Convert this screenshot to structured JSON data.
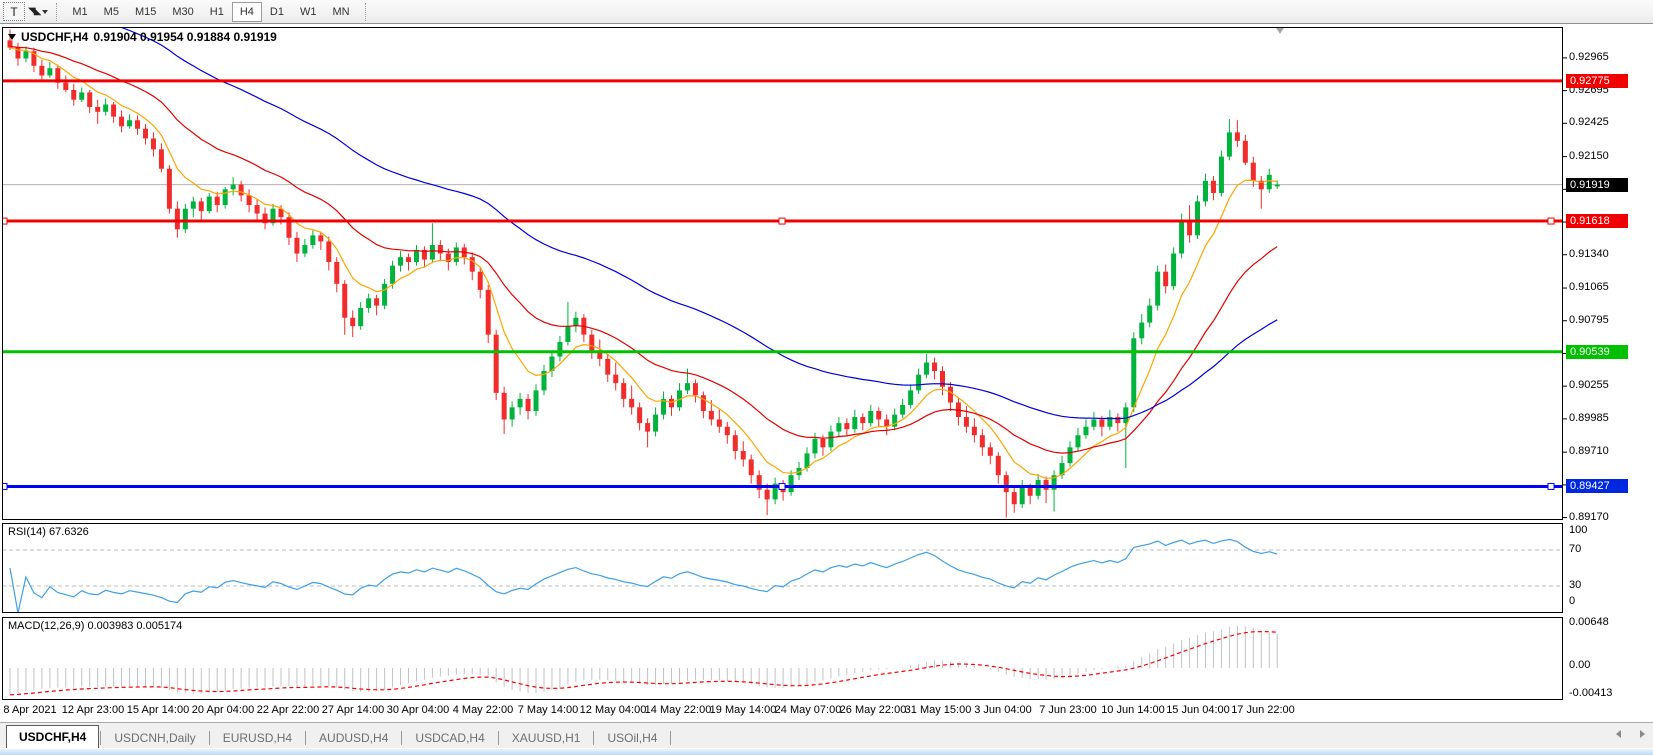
{
  "toolbar": {
    "text_tool_label": "T",
    "timeframes": [
      "M1",
      "M5",
      "M15",
      "M30",
      "H1",
      "H4",
      "D1",
      "W1",
      "MN"
    ],
    "active_timeframe": "H4"
  },
  "chart": {
    "symbol_label": "USDCHF,H4",
    "ohlc_label": "0.91904 0.91954 0.91884 0.91919"
  },
  "price_axis": {
    "ticks": [
      0.92965,
      0.92695,
      0.92425,
      0.9215,
      0.9188,
      0.9161,
      0.9134,
      0.91065,
      0.90795,
      0.90525,
      0.90255,
      0.89985,
      0.8971,
      0.8944,
      0.8917
    ],
    "badges": [
      {
        "label": "0.92775",
        "price": 0.92775,
        "bg": "#f00000"
      },
      {
        "label": "0.91919",
        "price": 0.91919,
        "bg": "#000000"
      },
      {
        "label": "0.91618",
        "price": 0.91618,
        "bg": "#f00000"
      },
      {
        "label": "0.90539",
        "price": 0.90539,
        "bg": "#00c000"
      },
      {
        "label": "0.89427",
        "price": 0.89427,
        "bg": "#0028e0"
      }
    ]
  },
  "rsi_panel": {
    "label": "RSI(14) 67.6326",
    "axis_labels": [
      "100",
      "70",
      "30",
      "0"
    ]
  },
  "macd_panel": {
    "label": "MACD(12,26,9) 0.003983 0.005174",
    "axis_labels": [
      "0.00648",
      "0.00",
      "-0.00413"
    ]
  },
  "time_axis": {
    "labels": [
      "8 Apr 2021",
      "12 Apr 23:00",
      "15 Apr 14:00",
      "20 Apr 04:00",
      "22 Apr 22:00",
      "27 Apr 14:00",
      "30 Apr 04:00",
      "4 May 22:00",
      "7 May 14:00",
      "12 May 04:00",
      "14 May 22:00",
      "19 May 14:00",
      "24 May 07:00",
      "26 May 22:00",
      "31 May 15:00",
      "3 Jun 04:00",
      "7 Jun 23:00",
      "10 Jun 14:00",
      "15 Jun 04:00",
      "17 Jun 22:00"
    ]
  },
  "tabs": {
    "items": [
      "USDCHF,H4",
      "USDCNH,Daily",
      "EURUSD,H4",
      "AUDUSD,H4",
      "USDCAD,H4",
      "XAUUSD,H1",
      "USOil,H4"
    ],
    "active": "USDCHF,H4"
  },
  "colors": {
    "bull": "#00b33c",
    "bear": "#f22b2b",
    "ma_fast": "#ffa500",
    "ma_mid": "#e60000",
    "ma_slow": "#0000e0",
    "rsi_line": "#3e9fe8",
    "macd_hist": "#c2c2c2",
    "macd_signal": "#ff0000",
    "current_price_line": "#b3b3b3",
    "hline_red": "#f00000",
    "hline_green": "#00c000",
    "hline_blue": "#0000ff"
  },
  "chart_data": {
    "type": "candlestick",
    "instrument": "USDCHF",
    "timeframe": "H4",
    "title": "USDCHF,H4",
    "last_ohlc": {
      "open": 0.91904,
      "high": 0.91954,
      "low": 0.91884,
      "close": 0.91919
    },
    "current_price": 0.91919,
    "ylim": [
      0.8915,
      0.9322
    ],
    "price_scale": 100000,
    "candles": [
      [
        93110,
        93200,
        93030,
        93050
      ],
      [
        93050,
        93090,
        92900,
        92960
      ],
      [
        92960,
        93060,
        92930,
        93020
      ],
      [
        93020,
        93050,
        92850,
        92900
      ],
      [
        92900,
        92950,
        92780,
        92820
      ],
      [
        92820,
        92930,
        92800,
        92880
      ],
      [
        92880,
        92910,
        92710,
        92760
      ],
      [
        92760,
        92820,
        92680,
        92700
      ],
      [
        92700,
        92750,
        92570,
        92620
      ],
      [
        92620,
        92720,
        92600,
        92680
      ],
      [
        92680,
        92700,
        92510,
        92560
      ],
      [
        92560,
        92620,
        92420,
        92520
      ],
      [
        92520,
        92630,
        92490,
        92580
      ],
      [
        92580,
        92600,
        92430,
        92480
      ],
      [
        92480,
        92530,
        92350,
        92400
      ],
      [
        92400,
        92500,
        92380,
        92450
      ],
      [
        92450,
        92490,
        92330,
        92380
      ],
      [
        92380,
        92420,
        92250,
        92300
      ],
      [
        92300,
        92350,
        92150,
        92210
      ],
      [
        92210,
        92260,
        92020,
        92050
      ],
      [
        92050,
        92080,
        91680,
        91720
      ],
      [
        91720,
        91780,
        91480,
        91550
      ],
      [
        91550,
        91760,
        91520,
        91720
      ],
      [
        91720,
        91820,
        91650,
        91780
      ],
      [
        91780,
        91810,
        91630,
        91700
      ],
      [
        91700,
        91850,
        91680,
        91820
      ],
      [
        91820,
        91860,
        91690,
        91750
      ],
      [
        91750,
        91900,
        91720,
        91880
      ],
      [
        91880,
        91980,
        91830,
        91920
      ],
      [
        91920,
        91950,
        91780,
        91830
      ],
      [
        91830,
        91880,
        91690,
        91750
      ],
      [
        91750,
        91800,
        91610,
        91680
      ],
      [
        91680,
        91730,
        91550,
        91600
      ],
      [
        91600,
        91760,
        91580,
        91720
      ],
      [
        91720,
        91750,
        91590,
        91650
      ],
      [
        91650,
        91690,
        91420,
        91480
      ],
      [
        91480,
        91530,
        91280,
        91350
      ],
      [
        91350,
        91470,
        91320,
        91420
      ],
      [
        91420,
        91540,
        91390,
        91500
      ],
      [
        91500,
        91530,
        91380,
        91450
      ],
      [
        91450,
        91490,
        91210,
        91280
      ],
      [
        91280,
        91320,
        91030,
        91100
      ],
      [
        91100,
        91130,
        90680,
        90820
      ],
      [
        90820,
        90880,
        90660,
        90750
      ],
      [
        90750,
        90950,
        90720,
        90900
      ],
      [
        90900,
        91020,
        90860,
        90980
      ],
      [
        90980,
        91010,
        90840,
        90920
      ],
      [
        90920,
        91140,
        90890,
        91100
      ],
      [
        91100,
        91290,
        91060,
        91250
      ],
      [
        91250,
        91370,
        91200,
        91320
      ],
      [
        91320,
        91350,
        91210,
        91280
      ],
      [
        91280,
        91420,
        91250,
        91380
      ],
      [
        91380,
        91410,
        91240,
        91300
      ],
      [
        91300,
        91600,
        91270,
        91420
      ],
      [
        91420,
        91460,
        91290,
        91350
      ],
      [
        91350,
        91390,
        91210,
        91280
      ],
      [
        91280,
        91440,
        91250,
        91400
      ],
      [
        91400,
        91430,
        91260,
        91320
      ],
      [
        91320,
        91360,
        91130,
        91200
      ],
      [
        91200,
        91240,
        90980,
        91050
      ],
      [
        91050,
        91090,
        90610,
        90680
      ],
      [
        90680,
        90720,
        90140,
        90200
      ],
      [
        90200,
        90250,
        89860,
        89980
      ],
      [
        89980,
        90130,
        89920,
        90080
      ],
      [
        90080,
        90200,
        90020,
        90150
      ],
      [
        90150,
        90190,
        89980,
        90050
      ],
      [
        90050,
        90270,
        90010,
        90220
      ],
      [
        90220,
        90430,
        90180,
        90380
      ],
      [
        90380,
        90550,
        90330,
        90500
      ],
      [
        90500,
        90670,
        90460,
        90620
      ],
      [
        90620,
        90950,
        90590,
        90750
      ],
      [
        90750,
        90870,
        90700,
        90820
      ],
      [
        90820,
        90850,
        90620,
        90680
      ],
      [
        90680,
        90720,
        90480,
        90550
      ],
      [
        90550,
        90640,
        90420,
        90480
      ],
      [
        90480,
        90520,
        90290,
        90350
      ],
      [
        90350,
        90450,
        90220,
        90280
      ],
      [
        90280,
        90320,
        90080,
        90150
      ],
      [
        90150,
        90260,
        90020,
        90080
      ],
      [
        90080,
        90120,
        89890,
        89950
      ],
      [
        89950,
        89990,
        89750,
        89880
      ],
      [
        89880,
        90080,
        89840,
        90020
      ],
      [
        90020,
        90210,
        89980,
        90150
      ],
      [
        90150,
        90180,
        90010,
        90080
      ],
      [
        90080,
        90280,
        90050,
        90220
      ],
      [
        90220,
        90400,
        90190,
        90280
      ],
      [
        90280,
        90310,
        90120,
        90180
      ],
      [
        90180,
        90210,
        89990,
        90050
      ],
      [
        90050,
        90140,
        89930,
        89980
      ],
      [
        89980,
        90060,
        89870,
        89920
      ],
      [
        89920,
        89960,
        89780,
        89850
      ],
      [
        89850,
        89890,
        89650,
        89720
      ],
      [
        89720,
        89800,
        89590,
        89650
      ],
      [
        89650,
        89690,
        89450,
        89520
      ],
      [
        89520,
        89560,
        89330,
        89400
      ],
      [
        89400,
        89450,
        89190,
        89320
      ],
      [
        89320,
        89500,
        89280,
        89450
      ],
      [
        89450,
        89480,
        89310,
        89380
      ],
      [
        89380,
        89560,
        89350,
        89520
      ],
      [
        89520,
        89630,
        89480,
        89580
      ],
      [
        89580,
        89750,
        89550,
        89700
      ],
      [
        89700,
        89870,
        89660,
        89820
      ],
      [
        89820,
        89850,
        89680,
        89750
      ],
      [
        89750,
        89930,
        89720,
        89880
      ],
      [
        89880,
        90000,
        89840,
        89950
      ],
      [
        89950,
        89990,
        89840,
        89900
      ],
      [
        89900,
        90060,
        89870,
        90000
      ],
      [
        90000,
        90030,
        89890,
        89950
      ],
      [
        89950,
        90100,
        89920,
        90050
      ],
      [
        90050,
        90080,
        89920,
        89980
      ],
      [
        89980,
        90020,
        89850,
        89920
      ],
      [
        89920,
        90070,
        89890,
        90020
      ],
      [
        90020,
        90150,
        89990,
        90100
      ],
      [
        90100,
        90270,
        90070,
        90220
      ],
      [
        90220,
        90400,
        90190,
        90350
      ],
      [
        90350,
        90520,
        90320,
        90450
      ],
      [
        90450,
        90490,
        90310,
        90380
      ],
      [
        90380,
        90420,
        90180,
        90250
      ],
      [
        90250,
        90290,
        90050,
        90120
      ],
      [
        90120,
        90160,
        89930,
        90000
      ],
      [
        90000,
        90090,
        89870,
        89920
      ],
      [
        89920,
        89990,
        89790,
        89850
      ],
      [
        89850,
        89900,
        89680,
        89750
      ],
      [
        89750,
        89790,
        89610,
        89680
      ],
      [
        89680,
        89710,
        89450,
        89520
      ],
      [
        89520,
        89550,
        89170,
        89380
      ],
      [
        89380,
        89420,
        89210,
        89280
      ],
      [
        89280,
        89480,
        89250,
        89420
      ],
      [
        89420,
        89450,
        89280,
        89350
      ],
      [
        89350,
        89530,
        89320,
        89480
      ],
      [
        89480,
        89510,
        89290,
        89400
      ],
      [
        89400,
        89560,
        89220,
        89520
      ],
      [
        89520,
        89680,
        89490,
        89620
      ],
      [
        89620,
        89800,
        89590,
        89750
      ],
      [
        89750,
        89910,
        89720,
        89850
      ],
      [
        89850,
        89980,
        89820,
        89920
      ],
      [
        89920,
        90040,
        89890,
        89980
      ],
      [
        89980,
        90010,
        89840,
        89920
      ],
      [
        89920,
        90060,
        89890,
        90000
      ],
      [
        90000,
        90030,
        89880,
        89950
      ],
      [
        89950,
        90120,
        89580,
        90080
      ],
      [
        90080,
        90700,
        90040,
        90650
      ],
      [
        90650,
        90850,
        90600,
        90780
      ],
      [
        90780,
        90980,
        90740,
        90920
      ],
      [
        90920,
        91250,
        90880,
        91200
      ],
      [
        91200,
        91260,
        91020,
        91080
      ],
      [
        91080,
        91400,
        91050,
        91350
      ],
      [
        91350,
        91680,
        91310,
        91620
      ],
      [
        91620,
        91750,
        91440,
        91500
      ],
      [
        91500,
        91830,
        91470,
        91780
      ],
      [
        91780,
        92010,
        91740,
        91950
      ],
      [
        91950,
        91990,
        91790,
        91850
      ],
      [
        91850,
        92200,
        91820,
        92150
      ],
      [
        92150,
        92460,
        92120,
        92350
      ],
      [
        92350,
        92450,
        92230,
        92280
      ],
      [
        92280,
        92330,
        92080,
        92100
      ],
      [
        92100,
        92150,
        91900,
        91950
      ],
      [
        91950,
        91990,
        91720,
        91880
      ],
      [
        91880,
        92050,
        91850,
        92000
      ],
      [
        91904,
        91954,
        91884,
        91919
      ]
    ],
    "indicators": {
      "ma": [
        {
          "type": "ema",
          "period": 8,
          "seed": 93050,
          "color": "#ffa500"
        },
        {
          "type": "ema",
          "period": 24,
          "seed": 93060,
          "color": "#e60000"
        },
        {
          "type": "ema",
          "period": 60,
          "seed": 93550,
          "color": "#0000e0"
        }
      ],
      "rsi": {
        "period": 14,
        "value": 67.6326,
        "levels": [
          70,
          30
        ],
        "range": [
          0,
          100
        ]
      },
      "macd": {
        "fast": 12,
        "slow": 26,
        "signal": 9,
        "value": 0.003983,
        "signal_value": 0.005174,
        "seed_fast": 93000,
        "seed_slow": 93420,
        "axis_range": [
          -0.00413,
          0.00648
        ]
      }
    },
    "hlines": [
      {
        "price": 0.92775,
        "color": "#f00000",
        "selected": false
      },
      {
        "price": 0.91618,
        "color": "#f00000",
        "selected": true
      },
      {
        "price": 0.90539,
        "color": "#00c000",
        "selected": false
      },
      {
        "price": 0.89427,
        "color": "#0000ff",
        "selected": true
      }
    ]
  }
}
